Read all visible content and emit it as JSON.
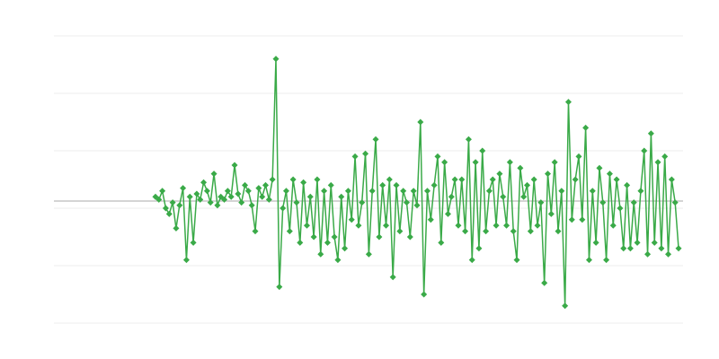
{
  "chart_data": {
    "type": "line",
    "color": "#3aaa48",
    "grid": true,
    "reference_line": 0.125,
    "ylim": [
      -2,
      3
    ],
    "yticks": [
      -2,
      -1,
      0,
      1,
      2,
      3
    ],
    "xlim": [
      -29.5,
      153.3
    ],
    "values": [
      0.2,
      0.15,
      0.3,
      0.0,
      -0.1,
      0.1,
      -0.35,
      0.05,
      0.35,
      -0.9,
      0.2,
      -0.6,
      0.25,
      0.15,
      0.45,
      0.3,
      0.1,
      0.6,
      0.05,
      0.2,
      0.15,
      0.3,
      0.2,
      0.75,
      0.25,
      0.1,
      0.4,
      0.3,
      0.05,
      -0.4,
      0.35,
      0.2,
      0.4,
      0.15,
      0.5,
      2.6,
      -1.37,
      0.0,
      0.3,
      -0.4,
      0.5,
      0.1,
      -0.6,
      0.45,
      -0.3,
      0.2,
      -0.5,
      0.5,
      -0.8,
      0.3,
      -0.6,
      0.4,
      -0.5,
      -0.9,
      0.2,
      -0.7,
      0.3,
      -0.2,
      0.9,
      -0.3,
      0.1,
      0.95,
      -0.8,
      0.3,
      1.2,
      -0.5,
      0.4,
      -0.3,
      0.5,
      -1.2,
      0.4,
      -0.4,
      0.3,
      0.1,
      -0.5,
      0.3,
      0.05,
      1.5,
      -1.5,
      0.3,
      -0.2,
      0.4,
      0.9,
      -0.6,
      0.8,
      -0.1,
      0.2,
      0.5,
      -0.3,
      0.5,
      -0.4,
      1.2,
      -0.9,
      0.8,
      -0.7,
      1.0,
      -0.4,
      0.3,
      0.5,
      -0.3,
      0.6,
      0.2,
      -0.3,
      0.8,
      -0.4,
      -0.9,
      0.7,
      0.2,
      0.4,
      -0.4,
      0.5,
      -0.3,
      0.1,
      -1.3,
      0.6,
      -0.1,
      0.8,
      -0.4,
      0.3,
      -1.7,
      1.85,
      -0.2,
      0.5,
      0.9,
      -0.2,
      1.4,
      -0.9,
      0.3,
      -0.6,
      0.7,
      0.1,
      -0.9,
      0.6,
      -0.3,
      0.5,
      0.0,
      -0.7,
      0.4,
      -0.7,
      0.1,
      -0.6,
      0.3,
      1.0,
      -0.8,
      1.3,
      -0.6,
      0.8,
      -0.7,
      0.9,
      -0.8,
      0.5,
      0.1,
      -0.7
    ]
  }
}
